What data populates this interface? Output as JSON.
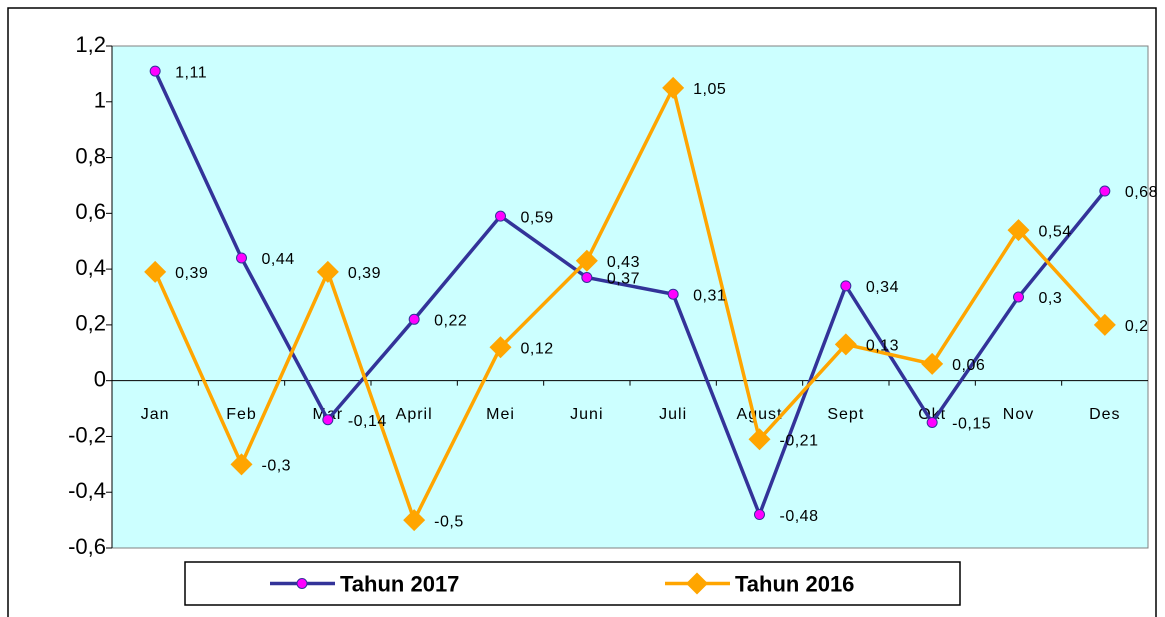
{
  "chart_data": {
    "type": "line",
    "categories": [
      "Jan",
      "Feb",
      "Mar",
      "April",
      "Mei",
      "Juni",
      "Juli",
      "Agust",
      "Sept",
      "Okt",
      "Nov",
      "Des"
    ],
    "series": [
      {
        "name": "Tahun 2017",
        "color": "#333399",
        "marker_color": "#ff00ff",
        "marker": "circle",
        "values": [
          1.11,
          0.44,
          -0.14,
          0.22,
          0.59,
          0.37,
          0.31,
          -0.48,
          0.34,
          -0.15,
          0.3,
          0.68
        ],
        "value_labels": [
          "1,11",
          "0,44",
          "-0,14",
          "0,22",
          "0,59",
          "0,37",
          "0,31",
          "-0,48",
          "0,34",
          "-0,15",
          "0,3",
          "0,68"
        ]
      },
      {
        "name": "Tahun 2016",
        "color": "#ffa500",
        "marker_color": "#ffa500",
        "marker": "diamond",
        "values": [
          0.39,
          -0.3,
          0.39,
          -0.5,
          0.12,
          0.43,
          1.05,
          -0.21,
          0.13,
          0.06,
          0.54,
          0.2
        ],
        "value_labels": [
          "0,39",
          "-0,3",
          "0,39",
          "-0,5",
          "0,12",
          "0,43",
          "1,05",
          "-0,21",
          "0,13",
          "0,06",
          "0,54",
          "0,2"
        ]
      }
    ],
    "ylim": [
      -0.6,
      1.2
    ],
    "yticks": [
      {
        "value": -0.6,
        "label": "-0,6"
      },
      {
        "value": -0.4,
        "label": "-0,4"
      },
      {
        "value": -0.2,
        "label": "-0,2"
      },
      0,
      {
        "value": 0.2,
        "label": "0,2"
      },
      {
        "value": 0.4,
        "label": "0,4"
      },
      {
        "value": 0.6,
        "label": "0,6"
      },
      {
        "value": 0.8,
        "label": "0,8"
      },
      1,
      {
        "value": 1.2,
        "label": "1,2"
      }
    ],
    "plot_background": "#ccffff",
    "legend": "bottom"
  }
}
